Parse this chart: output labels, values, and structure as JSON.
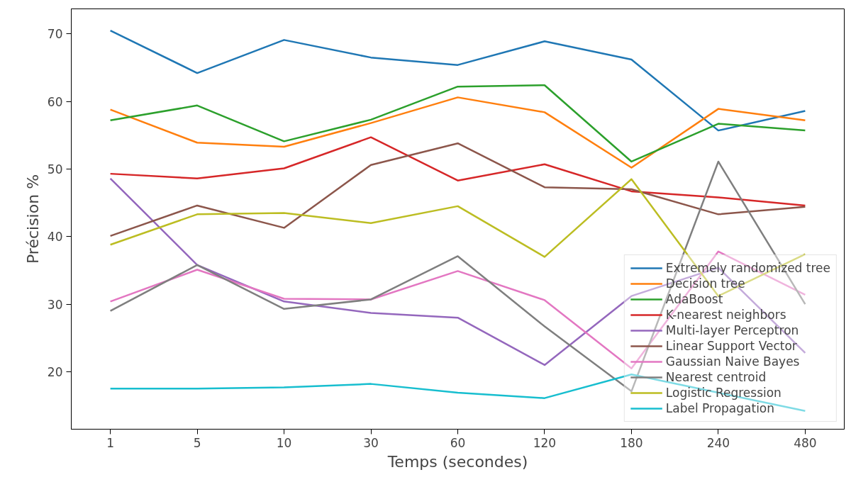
{
  "chart_data": {
    "type": "line",
    "xlabel": "Temps (secondes)",
    "ylabel": "Précision %",
    "categories": [
      "1",
      "5",
      "10",
      "30",
      "60",
      "120",
      "180",
      "240",
      "480"
    ],
    "ylim": [
      11.5,
      73.7
    ],
    "yticks": [
      20,
      30,
      40,
      50,
      60,
      70
    ],
    "grid": false,
    "legend": "bottom right",
    "line_style": "solid",
    "marker": "none",
    "series": [
      {
        "name": "Extremely randomized tree",
        "color": "#1f77b4",
        "values": [
          70.5,
          64.2,
          69.1,
          66.5,
          65.4,
          68.9,
          66.2,
          55.7,
          58.6
        ]
      },
      {
        "name": "Decision tree",
        "color": "#ff7f0e",
        "values": [
          58.8,
          53.9,
          53.3,
          56.8,
          60.6,
          58.4,
          50.2,
          58.9,
          57.2
        ]
      },
      {
        "name": "AdaBoost",
        "color": "#2ca02c",
        "values": [
          57.2,
          59.4,
          54.1,
          57.3,
          62.2,
          62.4,
          51.1,
          56.7,
          55.7
        ]
      },
      {
        "name": "K-nearest neighbors",
        "color": "#d62728",
        "values": [
          49.3,
          48.6,
          50.1,
          54.7,
          48.3,
          50.7,
          46.7,
          45.8,
          44.6
        ]
      },
      {
        "name": "Multi-layer Perceptron",
        "color": "#9467bd",
        "values": [
          48.6,
          35.8,
          30.4,
          28.7,
          28.0,
          21.0,
          31.2,
          35.4,
          22.8
        ]
      },
      {
        "name": "Linear Support Vector",
        "color": "#8c564b",
        "values": [
          40.1,
          44.6,
          41.3,
          50.6,
          53.8,
          47.3,
          47.0,
          43.3,
          44.4
        ]
      },
      {
        "name": "Gaussian Naive Bayes",
        "color": "#e377c2",
        "values": [
          30.4,
          35.1,
          30.8,
          30.7,
          34.9,
          30.6,
          20.5,
          37.8,
          31.4
        ]
      },
      {
        "name": "Nearest centroid",
        "color": "#7f7f7f",
        "values": [
          29.0,
          35.8,
          29.3,
          30.7,
          37.1,
          26.7,
          17.1,
          51.1,
          30.0
        ]
      },
      {
        "name": "Logistic Regression",
        "color": "#bcbd22",
        "values": [
          38.8,
          43.3,
          43.5,
          42.0,
          44.5,
          37.0,
          48.5,
          31.2,
          37.4
        ]
      },
      {
        "name": "Label Propagation",
        "color": "#17becf",
        "values": [
          17.5,
          17.5,
          17.7,
          18.2,
          16.9,
          16.1,
          19.6,
          16.9,
          14.2
        ]
      }
    ]
  }
}
